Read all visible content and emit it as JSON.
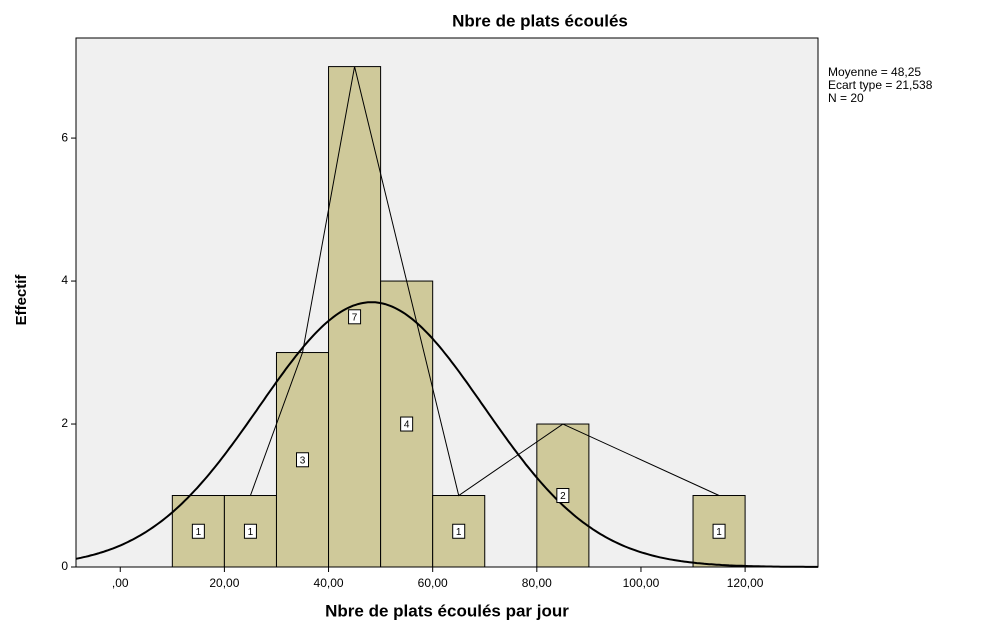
{
  "chart_data": {
    "type": "histogram",
    "title": "Nbre de plats écoulés",
    "xlabel": "Nbre de plats écoulés par jour",
    "ylabel": "Effectif",
    "bins": [
      10,
      20,
      30,
      40,
      50,
      60,
      70,
      80,
      90,
      100,
      110,
      120
    ],
    "counts": [
      1,
      1,
      3,
      7,
      4,
      1,
      0,
      2,
      0,
      0,
      1
    ],
    "color": "#cfc99a",
    "xlim": [
      -8.5,
      134
    ],
    "ylim": [
      0,
      7.4
    ],
    "xticks": [
      {
        "value": 0,
        "label": ",00"
      },
      {
        "value": 20,
        "label": "20,00"
      },
      {
        "value": 40,
        "label": "40,00"
      },
      {
        "value": 60,
        "label": "60,00"
      },
      {
        "value": 80,
        "label": "80,00"
      },
      {
        "value": 100,
        "label": "100,00"
      },
      {
        "value": 120,
        "label": "120,00"
      }
    ],
    "yticks": [
      0,
      2,
      4,
      6
    ],
    "stats": [
      {
        "label": "Moyenne = 48,25",
        "value": 48.25
      },
      {
        "label": "Ecart type = 21,538",
        "value": 21.538
      },
      {
        "label": "N = 20",
        "value": 20
      }
    ]
  }
}
